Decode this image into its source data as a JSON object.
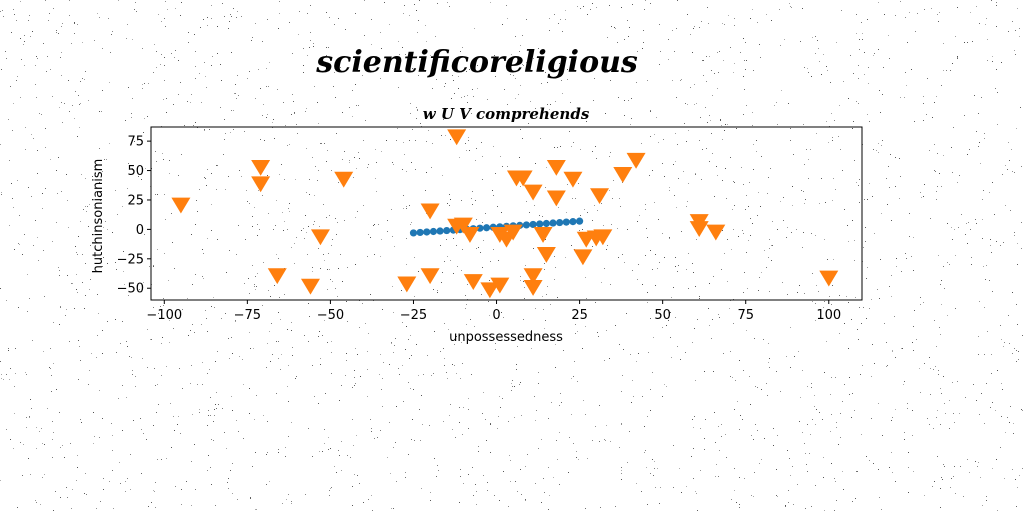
{
  "chart_data": {
    "type": "scatter",
    "suptitle": "scientificoreligious",
    "title": "w U V comprehends",
    "xlabel": "unpossessedness",
    "ylabel": "hutchinsonianism",
    "xlim": [
      -104,
      110
    ],
    "ylim": [
      -60,
      87
    ],
    "xticks": [
      -100,
      -75,
      -50,
      -25,
      0,
      25,
      50,
      75,
      100
    ],
    "yticks": [
      -50,
      -25,
      0,
      25,
      50,
      75
    ],
    "grid": false,
    "series": [
      {
        "marker": "circle",
        "color": "#1f77b4",
        "x": [
          -25,
          -23,
          -21,
          -19,
          -17,
          -15,
          -13,
          -11,
          -9,
          -7,
          -5,
          -3,
          -1,
          1,
          3,
          5,
          7,
          9,
          11,
          13,
          15,
          17,
          19,
          21,
          23,
          25
        ],
        "y": [
          -3.0,
          -2.6,
          -2.2,
          -1.8,
          -1.4,
          -1.0,
          -0.6,
          -0.2,
          0.2,
          0.6,
          1.0,
          1.4,
          1.8,
          2.2,
          2.6,
          3.0,
          3.4,
          3.8,
          4.2,
          4.6,
          5.0,
          5.4,
          5.8,
          6.2,
          6.6,
          7.0
        ]
      },
      {
        "marker": "triangle_down",
        "color": "#ff7f0e",
        "x": [
          -95,
          -71,
          -71,
          -66,
          -56,
          -53,
          -46,
          -27,
          -20,
          -20,
          -12,
          -12,
          -10,
          -8,
          -7,
          -2,
          1,
          1,
          3,
          5,
          6,
          8,
          11,
          11,
          11,
          14,
          15,
          18,
          18,
          23,
          26,
          27,
          30,
          31,
          32,
          38,
          42,
          61,
          61,
          66,
          100
        ],
        "y": [
          22,
          54,
          40,
          -38,
          -47,
          -5,
          44,
          -45,
          17,
          -38,
          80,
          4,
          5,
          -3,
          -43,
          -50,
          -3,
          -46,
          -7,
          -1,
          45,
          45,
          -38,
          -48,
          33,
          -3,
          -20,
          28,
          54,
          44,
          -22,
          -7,
          -6,
          30,
          -5,
          48,
          60,
          8,
          2,
          -1,
          -40
        ]
      }
    ]
  }
}
